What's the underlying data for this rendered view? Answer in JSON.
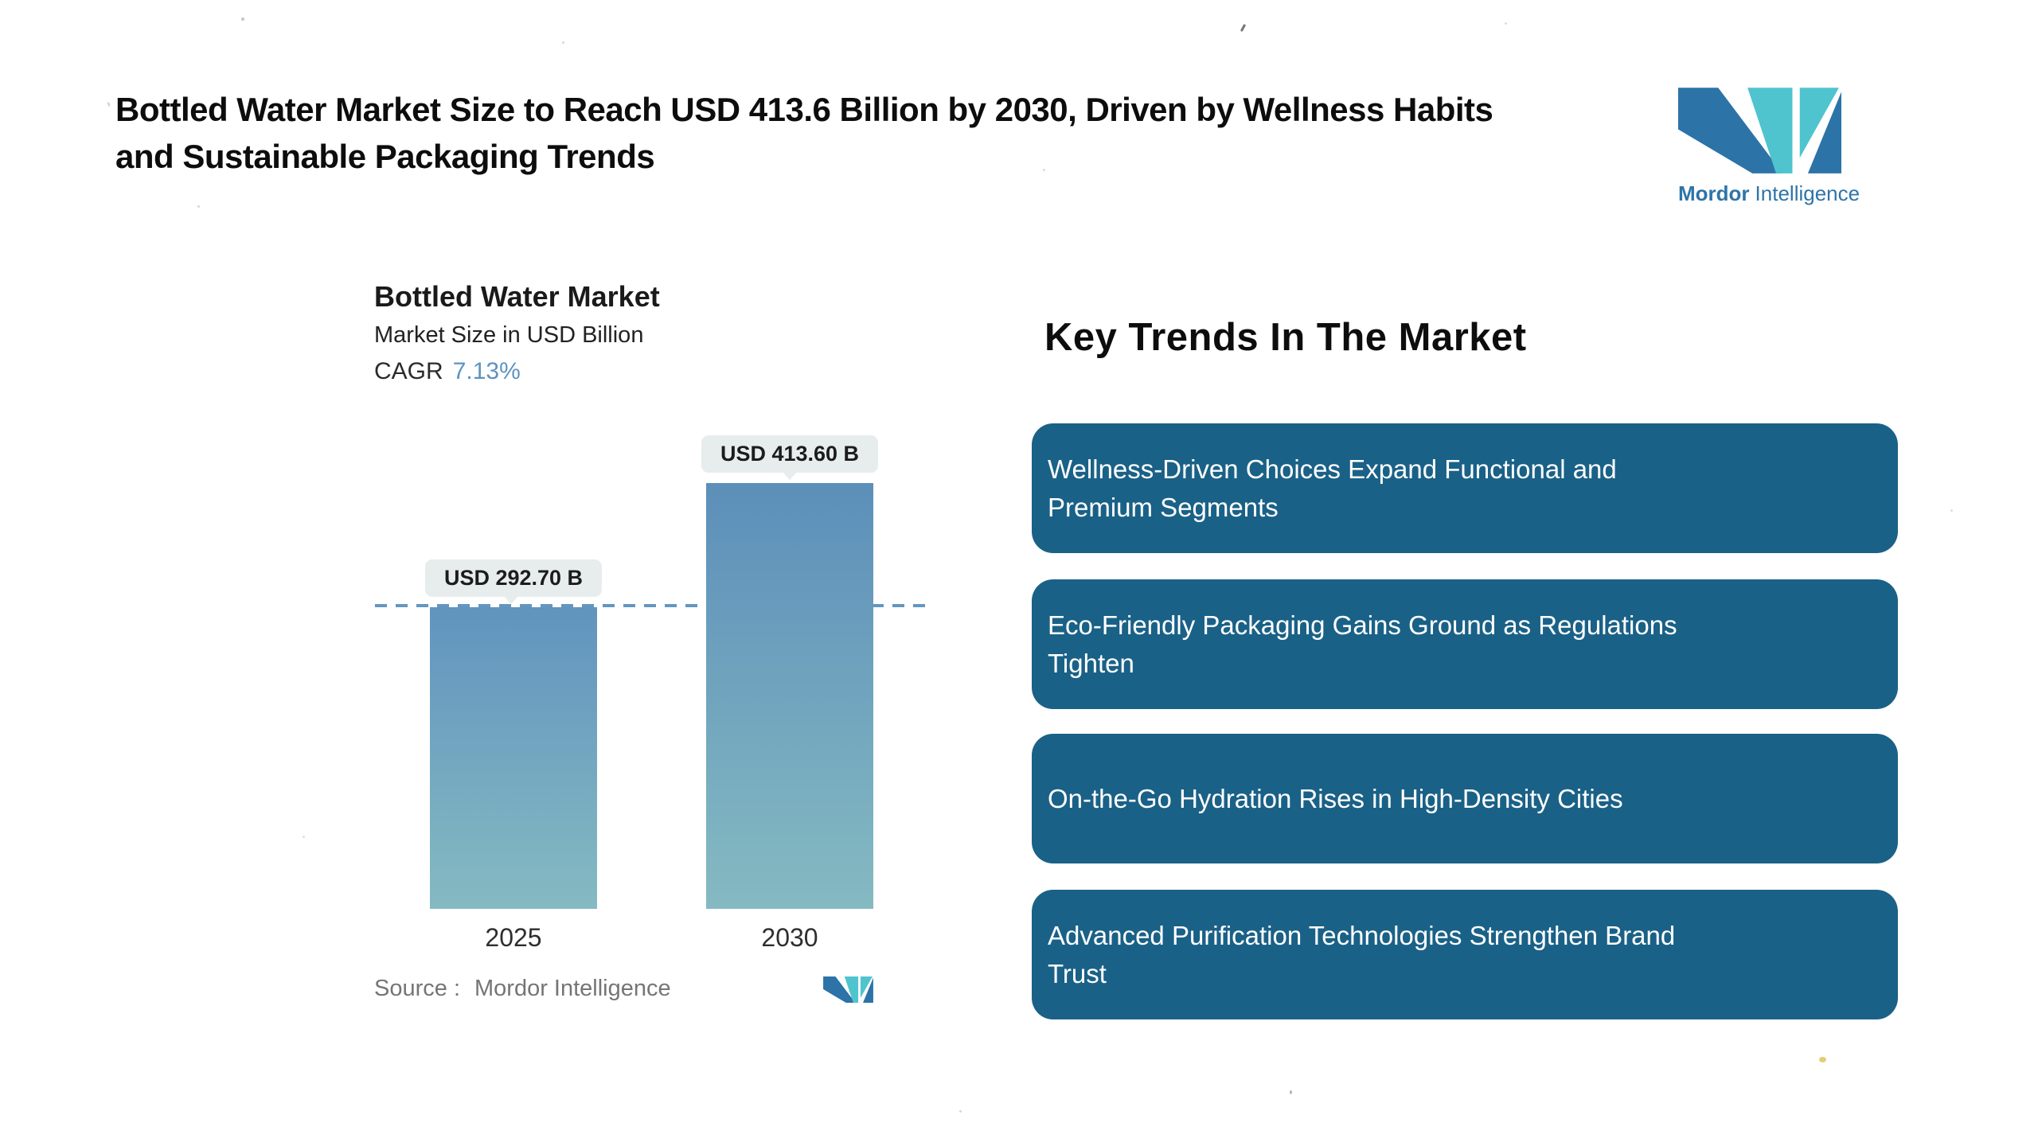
{
  "header": {
    "title_lines": [
      "Bottled Water Market Size to Reach USD 413.6 Billion by 2030, Driven by Wellness Habits",
      "and Sustainable Packaging Trends"
    ]
  },
  "brand": {
    "word_bold": "Mordor",
    "word_regular": "Intelligence",
    "colors": {
      "logo_dark_blue": "#2C73A7",
      "logo_teal": "#4FC4CE",
      "wordmark_blue": "#2E74A8"
    }
  },
  "chart": {
    "title": "Bottled Water Market",
    "subtitle": "Market Size in USD Billion",
    "cagr_label": "CAGR",
    "cagr_value": "7.13%",
    "cagr_value_color": "#5E93BF",
    "source_label": "Source :",
    "source_value": "Mordor Intelligence"
  },
  "chart_data": {
    "type": "bar",
    "title": "Bottled Water Market",
    "ylabel": "Market Size in USD Billion",
    "unit": "USD Billion",
    "categories": [
      "2025",
      "2030"
    ],
    "values": [
      292.7,
      413.6
    ],
    "value_labels": [
      "USD 292.70 B",
      "USD 413.60 B"
    ],
    "cagr_percent": 7.13,
    "reference_line_value": 292.7,
    "ylim": [
      0,
      460
    ],
    "grid": false,
    "legend": false,
    "bar_gradient_top": "#5C8FB9",
    "bar_gradient_bottom": "#85BAC2",
    "reference_line_color": "#6397C1",
    "value_bubble_color": "#E7EDED"
  },
  "key_trends": {
    "heading": "Key Trends In The Market",
    "box_color": "#1A6187",
    "text_color": "#FFFFFF",
    "items": [
      {
        "text": "Wellness-Driven Choices Expand Functional and Premium Segments",
        "lines": [
          "Wellness-Driven Choices Expand Functional and",
          "Premium Segments"
        ]
      },
      {
        "text": "Eco-Friendly Packaging Gains Ground as Regulations Tighten",
        "lines": [
          "Eco-Friendly Packaging Gains Ground as Regulations",
          "Tighten"
        ]
      },
      {
        "text": "On-the-Go Hydration Rises in High-Density Cities",
        "lines": [
          "On-the-Go Hydration Rises in High-Density Cities"
        ]
      },
      {
        "text": "Advanced Purification Technologies Strengthen Brand Trust",
        "lines": [
          "Advanced Purification Technologies Strengthen Brand",
          "Trust"
        ]
      }
    ]
  }
}
